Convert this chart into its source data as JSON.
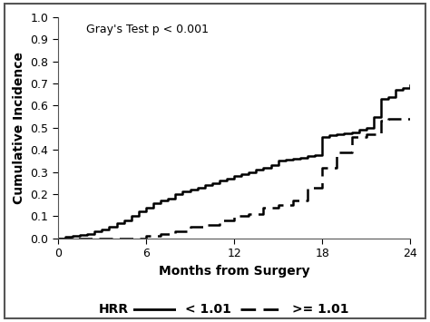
{
  "annotation": "Gray's Test p < 0.001",
  "xlabel": "Months from Surgery",
  "ylabel": "Cumulative Incidence",
  "xlim": [
    0,
    24
  ],
  "ylim": [
    0,
    1.0
  ],
  "xticks": [
    0,
    6,
    12,
    18,
    24
  ],
  "yticks": [
    0.0,
    0.1,
    0.2,
    0.3,
    0.4,
    0.5,
    0.6,
    0.7,
    0.8,
    0.9,
    1.0
  ],
  "legend_label_hrr": "HRR",
  "legend_label_low": "< 1.01",
  "legend_label_high": ">= 1.01",
  "curve_low_x": [
    0,
    0.5,
    1.0,
    1.5,
    2.0,
    2.5,
    3.0,
    3.5,
    4.0,
    4.5,
    5.0,
    5.5,
    6.0,
    6.5,
    7.0,
    7.5,
    8.0,
    8.5,
    9.0,
    9.5,
    10.0,
    10.5,
    11.0,
    11.5,
    12.0,
    12.5,
    13.0,
    13.5,
    14.0,
    14.5,
    15.0,
    15.5,
    16.0,
    16.5,
    17.0,
    17.5,
    18.0,
    18.5,
    19.0,
    19.5,
    20.0,
    20.5,
    21.0,
    21.5,
    22.0,
    22.5,
    23.0,
    23.5,
    24.0
  ],
  "curve_low_y": [
    0.0,
    0.005,
    0.01,
    0.015,
    0.02,
    0.03,
    0.04,
    0.05,
    0.07,
    0.08,
    0.1,
    0.12,
    0.14,
    0.16,
    0.17,
    0.18,
    0.2,
    0.21,
    0.22,
    0.23,
    0.24,
    0.25,
    0.26,
    0.27,
    0.28,
    0.29,
    0.3,
    0.31,
    0.32,
    0.33,
    0.35,
    0.355,
    0.36,
    0.365,
    0.37,
    0.375,
    0.46,
    0.465,
    0.47,
    0.475,
    0.48,
    0.49,
    0.5,
    0.55,
    0.63,
    0.64,
    0.67,
    0.68,
    0.69
  ],
  "curve_high_x": [
    0,
    1.0,
    2.0,
    3.0,
    4.0,
    5.0,
    6.0,
    7.0,
    8.0,
    9.0,
    10.0,
    11.0,
    12.0,
    13.0,
    14.0,
    15.0,
    16.0,
    17.0,
    18.0,
    19.0,
    20.0,
    21.0,
    22.0,
    22.5,
    23.0,
    23.5,
    24.0
  ],
  "curve_high_y": [
    0.0,
    0.0,
    0.0,
    0.0,
    0.0,
    0.0,
    0.01,
    0.02,
    0.03,
    0.05,
    0.06,
    0.08,
    0.1,
    0.11,
    0.14,
    0.15,
    0.17,
    0.23,
    0.32,
    0.39,
    0.46,
    0.47,
    0.53,
    0.54,
    0.54,
    0.54,
    0.54
  ],
  "color": "#000000",
  "background_color": "#ffffff",
  "border_color": "#555555"
}
